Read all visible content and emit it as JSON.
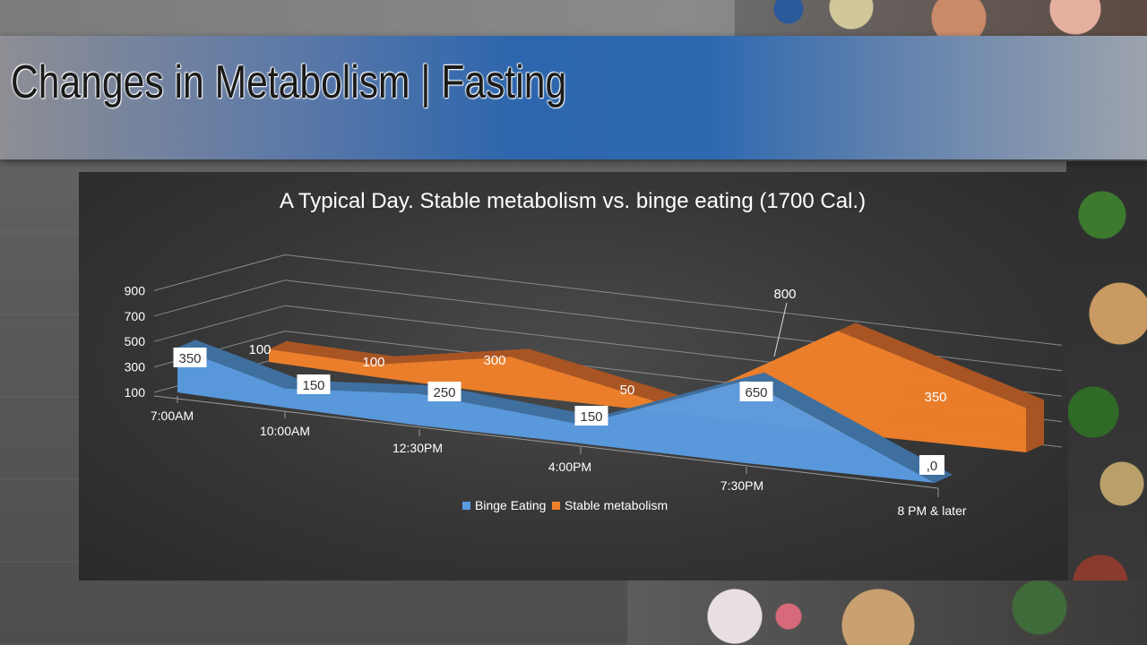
{
  "slide": {
    "title": "Changes in Metabolism | Fasting"
  },
  "colors": {
    "binge": "#5a9be0",
    "binge_dark": "#3f6f9e",
    "stable": "#f0802a",
    "stable_dark": "#a95423",
    "band_accent": "#2e69b0"
  },
  "chart_data": {
    "type": "area",
    "title": "A Typical Day. Stable metabolism vs. binge eating (1700 Cal.)",
    "is_3d": true,
    "categories": [
      "7:00AM",
      "10:00AM",
      "12:30PM",
      "4:00PM",
      "7:30PM",
      "8 PM & later"
    ],
    "y_ticks": [
      "900",
      "700",
      "500",
      "300",
      "100"
    ],
    "ylim": [
      100,
      900
    ],
    "grid": true,
    "legend_position": "bottom",
    "series": [
      {
        "name": "Binge Eating",
        "values": [
          350,
          150,
          250,
          150,
          650,
          0
        ],
        "labels": [
          "350",
          "150",
          "250",
          "150",
          "650",
          ",0"
        ]
      },
      {
        "name": "Stable metabolism",
        "values": [
          100,
          100,
          300,
          50,
          800,
          350
        ],
        "labels": [
          "100",
          "100",
          "300",
          "50",
          "800",
          "350"
        ]
      }
    ]
  }
}
